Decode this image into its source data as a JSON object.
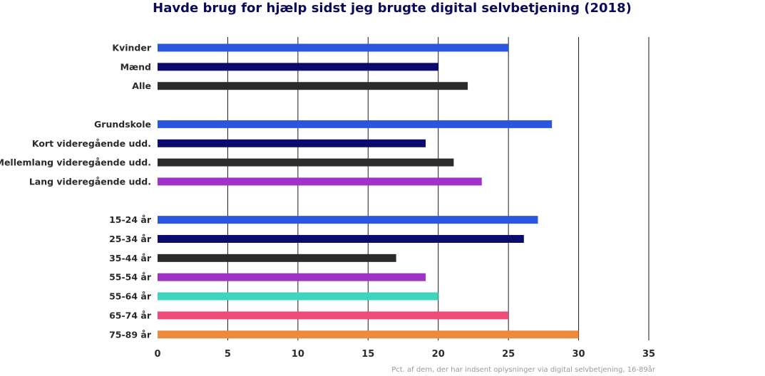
{
  "chart_data": {
    "type": "bar",
    "orientation": "horizontal",
    "title": "Havde brug for hjælp sidst jeg brugte digital selvbetjening (2018)",
    "source_note": "Pct. af dem, der har indsent oplysninger via digital selvbetjening, 16-89år",
    "xlim": [
      0,
      35
    ],
    "x_ticks": [
      "0",
      "5",
      "10",
      "15",
      "20",
      "25",
      "30",
      "35"
    ],
    "grid": "vertical",
    "groups": [
      {
        "items": [
          {
            "label": "Kvinder",
            "value": 25,
            "color": "#2b57e0"
          },
          {
            "label": "Mænd",
            "value": 20,
            "color": "#0b0b6e"
          },
          {
            "label": "Alle",
            "value": 22.1,
            "color": "#2b2b2b"
          }
        ]
      },
      {
        "items": [
          {
            "label": "Grundskole",
            "value": 28.1,
            "color": "#2b57e0"
          },
          {
            "label": "Kort videregående udd.",
            "value": 19.1,
            "color": "#0b0b6e"
          },
          {
            "label": "Mellemlang videregående udd.",
            "value": 21.1,
            "color": "#2b2b2b"
          },
          {
            "label": "Lang videregående udd.",
            "value": 23.1,
            "color": "#a032c8"
          }
        ]
      },
      {
        "items": [
          {
            "label": "15-24 år",
            "value": 27.1,
            "color": "#2b57e0"
          },
          {
            "label": "25-34 år",
            "value": 26.1,
            "color": "#0b0b6e"
          },
          {
            "label": "35-44 år",
            "value": 17,
            "color": "#2b2b2b"
          },
          {
            "label": "55-54 år",
            "value": 19.1,
            "color": "#a032c8"
          },
          {
            "label": "55-64 år",
            "value": 20,
            "color": "#3ed4c0"
          },
          {
            "label": "65-74 år",
            "value": 25,
            "color": "#ee4a7a"
          },
          {
            "label": "75-89 år",
            "value": 30,
            "color": "#ee8a3c"
          }
        ]
      }
    ]
  }
}
